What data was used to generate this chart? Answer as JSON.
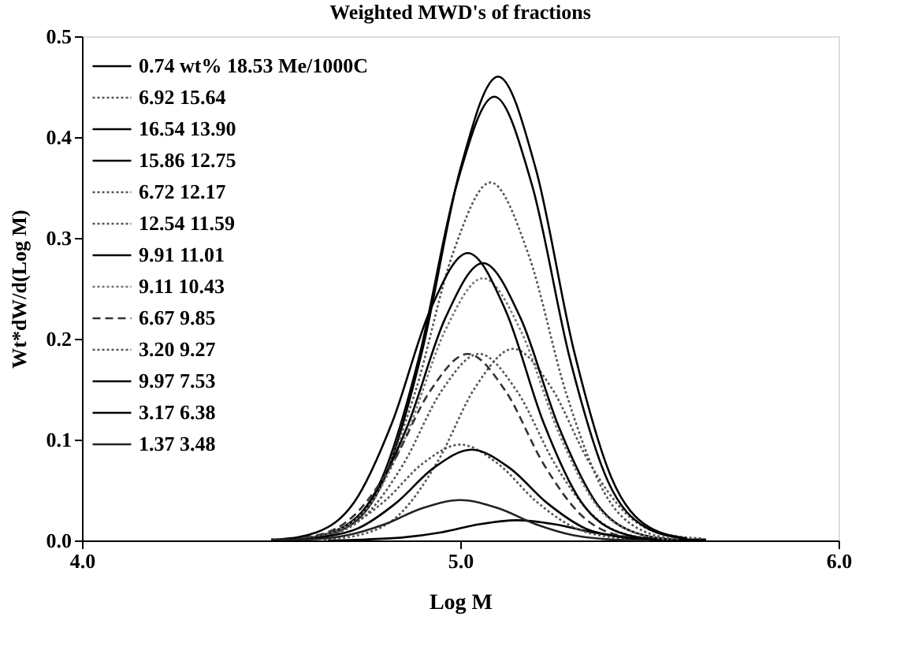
{
  "chart_data": {
    "type": "line",
    "title": "Weighted MWD's of fractions",
    "xlabel": "Log M",
    "ylabel": "Wt*dW/d(Log M)",
    "xlim": [
      4.0,
      6.0
    ],
    "xticks": [
      {
        "value": 4,
        "label": "4.0"
      },
      {
        "value": 5,
        "label": "5.0"
      },
      {
        "value": 6,
        "label": "6.0"
      }
    ],
    "ylim": [
      0,
      0.5
    ],
    "yticks": [
      {
        "value": 0,
        "label": "0.0"
      },
      {
        "value": 0.1,
        "label": "0.1"
      },
      {
        "value": 0.2,
        "label": "0.2"
      },
      {
        "value": 0.3,
        "label": "0.3"
      },
      {
        "value": 0.4,
        "label": "0.4"
      },
      {
        "value": 0.5,
        "label": "0.5"
      }
    ],
    "grid": false,
    "legend": "top left",
    "marker": "none",
    "series": [
      {
        "name": "0.74 wt% 18.53 Me/1000C",
        "color": "#000000",
        "line_style": "solid",
        "x": [
          4.65,
          4.75,
          4.85,
          4.95,
          5.05,
          5.15,
          5.25,
          5.35,
          5.45,
          5.55,
          5.65
        ],
        "values": [
          0,
          0.001,
          0.003,
          0.008,
          0.016,
          0.02,
          0.016,
          0.008,
          0.003,
          0.001,
          0.001
        ]
      },
      {
        "name": "6.92 15.64",
        "color": "#555555",
        "line_style": "dotted",
        "x": [
          4.64,
          4.74,
          4.84,
          4.94,
          5.04,
          5.14,
          5.24,
          5.34,
          5.44,
          5.54,
          5.64
        ],
        "values": [
          0.001,
          0.006,
          0.026,
          0.078,
          0.152,
          0.19,
          0.152,
          0.078,
          0.026,
          0.006,
          0.002
        ]
      },
      {
        "name": "16.54 13.90",
        "color": "#000000",
        "line_style": "solid",
        "x": [
          4.6,
          4.7,
          4.8,
          4.9,
          5.0,
          5.1,
          5.2,
          5.3,
          5.4,
          5.5,
          5.6
        ],
        "values": [
          0.002,
          0.013,
          0.062,
          0.189,
          0.368,
          0.46,
          0.368,
          0.189,
          0.062,
          0.013,
          0.002
        ]
      },
      {
        "name": "15.86 12.75",
        "color": "#000000",
        "line_style": "solid",
        "x": [
          4.59,
          4.69,
          4.79,
          4.89,
          4.99,
          5.09,
          5.19,
          5.29,
          5.39,
          5.49,
          5.59
        ],
        "values": [
          0.002,
          0.013,
          0.059,
          0.18,
          0.352,
          0.44,
          0.352,
          0.18,
          0.059,
          0.013,
          0.002
        ]
      },
      {
        "name": "6.72 12.17",
        "color": "#555555",
        "line_style": "dotted",
        "x": [
          4.55,
          4.65,
          4.75,
          4.85,
          4.95,
          5.05,
          5.15,
          5.25,
          5.35,
          5.45,
          5.55
        ],
        "values": [
          0.001,
          0.005,
          0.025,
          0.076,
          0.148,
          0.185,
          0.148,
          0.076,
          0.025,
          0.005,
          0.001
        ]
      },
      {
        "name": "12.54 11.59",
        "color": "#555555",
        "line_style": "dotted",
        "x": [
          4.58,
          4.68,
          4.78,
          4.88,
          4.98,
          5.08,
          5.18,
          5.28,
          5.38,
          5.48,
          5.58
        ],
        "values": [
          0.001,
          0.01,
          0.048,
          0.146,
          0.284,
          0.355,
          0.284,
          0.146,
          0.048,
          0.01,
          0.001
        ]
      },
      {
        "name": "9.91 11.01",
        "color": "#000000",
        "line_style": "solid",
        "x": [
          4.56,
          4.66,
          4.76,
          4.86,
          4.96,
          5.06,
          5.16,
          5.26,
          5.36,
          5.46,
          5.56
        ],
        "values": [
          0.001,
          0.008,
          0.037,
          0.113,
          0.22,
          0.275,
          0.22,
          0.113,
          0.037,
          0.008,
          0.001
        ]
      },
      {
        "name": "9.11 10.43",
        "color": "#777777",
        "line_style": "dotted",
        "x": [
          4.56,
          4.66,
          4.76,
          4.86,
          4.96,
          5.06,
          5.16,
          5.26,
          5.36,
          5.46,
          5.56
        ],
        "values": [
          0.001,
          0.008,
          0.035,
          0.107,
          0.208,
          0.26,
          0.208,
          0.107,
          0.035,
          0.008,
          0.001
        ]
      },
      {
        "name": "6.67 9.85",
        "color": "#333333",
        "line_style": "dashed",
        "x": [
          4.52,
          4.62,
          4.72,
          4.82,
          4.92,
          5.02,
          5.12,
          5.22,
          5.32,
          5.42,
          5.52
        ],
        "values": [
          0.001,
          0.005,
          0.025,
          0.076,
          0.148,
          0.185,
          0.148,
          0.076,
          0.025,
          0.005,
          0.001
        ]
      },
      {
        "name": "3.20 9.27",
        "color": "#555555",
        "line_style": "dotted",
        "x": [
          4.5,
          4.6,
          4.7,
          4.8,
          4.9,
          5.0,
          5.1,
          5.2,
          5.3,
          5.4,
          5.5
        ],
        "values": [
          0.001,
          0.003,
          0.013,
          0.039,
          0.076,
          0.095,
          0.076,
          0.039,
          0.013,
          0.003,
          0
        ]
      },
      {
        "name": "9.97 7.53",
        "color": "#000000",
        "line_style": "solid",
        "x": [
          4.52,
          4.62,
          4.72,
          4.82,
          4.92,
          5.02,
          5.12,
          5.22,
          5.32,
          5.42,
          5.52
        ],
        "values": [
          0.001,
          0.008,
          0.038,
          0.117,
          0.228,
          0.285,
          0.228,
          0.117,
          0.038,
          0.008,
          0.001
        ]
      },
      {
        "name": "3.17 6.38",
        "color": "#000000",
        "line_style": "solid",
        "x": [
          4.53,
          4.63,
          4.73,
          4.83,
          4.93,
          5.03,
          5.13,
          5.23,
          5.33,
          5.43,
          5.53
        ],
        "values": [
          0,
          0.003,
          0.012,
          0.037,
          0.072,
          0.09,
          0.072,
          0.037,
          0.012,
          0.003,
          0
        ]
      },
      {
        "name": "1.37 3.48",
        "color": "#222222",
        "line_style": "solid",
        "x": [
          4.5,
          4.6,
          4.7,
          4.8,
          4.9,
          5.0,
          5.1,
          5.2,
          5.3,
          5.4,
          5.5
        ],
        "values": [
          0.001,
          0.001,
          0.005,
          0.016,
          0.032,
          0.04,
          0.032,
          0.016,
          0.005,
          0.001,
          0
        ]
      }
    ]
  }
}
